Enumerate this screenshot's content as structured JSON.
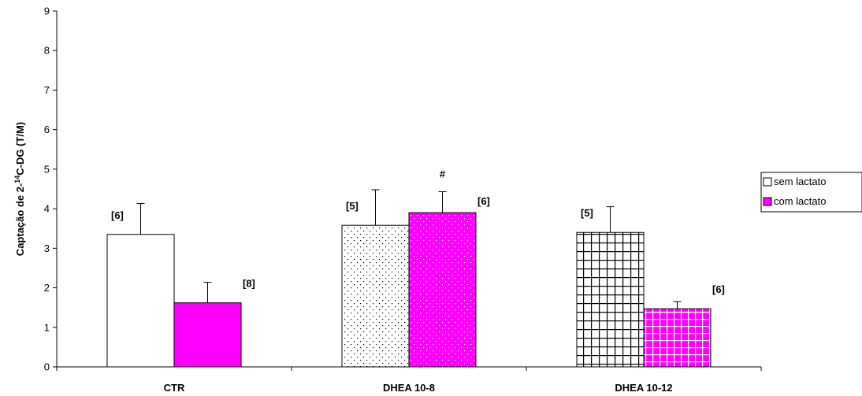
{
  "chart_data": {
    "type": "bar",
    "categories": [
      "CTR",
      "DHEA 10-8",
      "DHEA 10-12"
    ],
    "ylabel_prefix": "Captação de 2-",
    "ylabel_super": "14",
    "ylabel_suffix": "C-DG (T/M)",
    "ylim": [
      0,
      9
    ],
    "yticks": [
      "0",
      "1",
      "2",
      "3",
      "4",
      "5",
      "6",
      "7",
      "8",
      "9"
    ],
    "legend_position": "right",
    "series": [
      {
        "name": "sem lactato",
        "values": [
          3.35,
          3.58,
          3.4
        ],
        "errors": [
          0.78,
          0.9,
          0.65
        ],
        "labels": [
          "[6]",
          "[5]",
          "[5]"
        ],
        "patterns": [
          "none",
          "dots",
          "grid"
        ],
        "color": "#ffffff"
      },
      {
        "name": "com lactato",
        "values": [
          1.62,
          3.9,
          1.47
        ],
        "errors": [
          0.52,
          0.53,
          0.18
        ],
        "labels": [
          "[8]",
          "[6]",
          "[6]"
        ],
        "patterns": [
          "none",
          "dots",
          "grid"
        ],
        "color": "#ff00ff"
      }
    ],
    "annotations": [
      {
        "text": "#",
        "category": 1,
        "series": 1
      }
    ]
  }
}
